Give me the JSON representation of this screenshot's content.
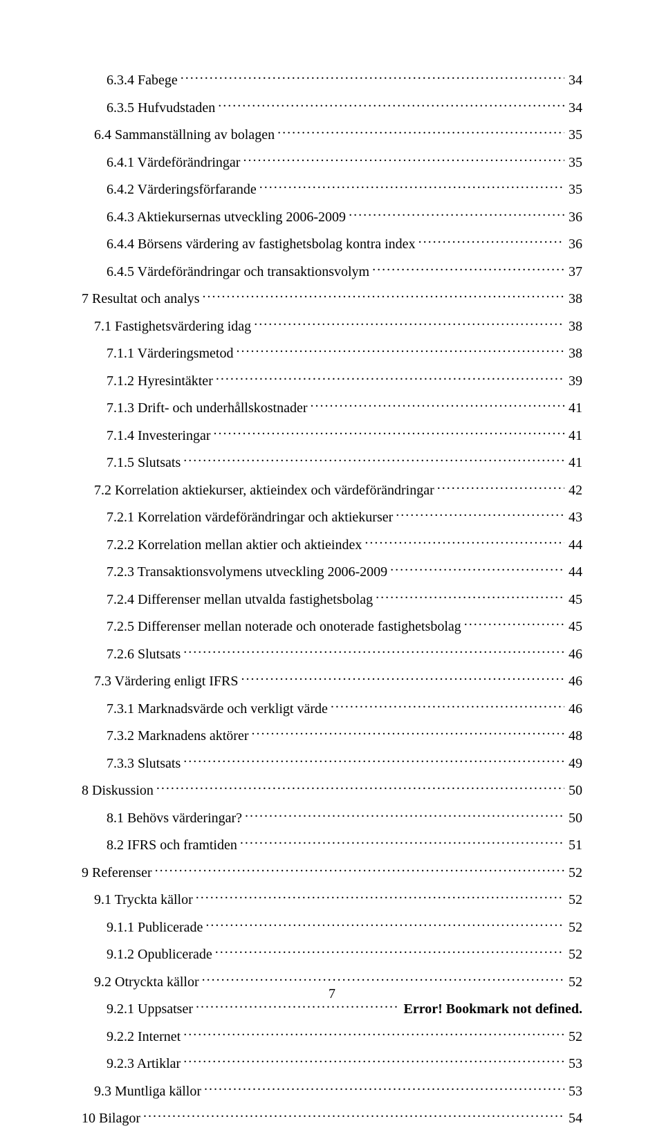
{
  "page_number": "7",
  "toc": [
    {
      "indent": 2,
      "label": "6.3.4 Fabege",
      "page": "34",
      "bold": false
    },
    {
      "indent": 2,
      "label": "6.3.5 Hufvudstaden",
      "page": "34",
      "bold": false
    },
    {
      "indent": 1,
      "label": "6.4 Sammanställning av bolagen",
      "page": "35",
      "bold": false
    },
    {
      "indent": 2,
      "label": "6.4.1 Värdeförändringar",
      "page": "35",
      "bold": false
    },
    {
      "indent": 2,
      "label": "6.4.2 Värderingsförfarande",
      "page": "35",
      "bold": false
    },
    {
      "indent": 2,
      "label": "6.4.3 Aktiekursernas utveckling 2006-2009",
      "page": "36",
      "bold": false
    },
    {
      "indent": 2,
      "label": "6.4.4 Börsens värdering av fastighetsbolag kontra index",
      "page": "36",
      "bold": false
    },
    {
      "indent": 2,
      "label": "6.4.5 Värdeförändringar och transaktionsvolym",
      "page": "37",
      "bold": false
    },
    {
      "indent": 0,
      "label": "7 Resultat och analys",
      "page": "38",
      "bold": false
    },
    {
      "indent": 1,
      "label": "7.1 Fastighetsvärdering idag",
      "page": "38",
      "bold": false
    },
    {
      "indent": 2,
      "label": "7.1.1 Värderingsmetod",
      "page": "38",
      "bold": false
    },
    {
      "indent": 2,
      "label": "7.1.2 Hyresintäkter",
      "page": "39",
      "bold": false
    },
    {
      "indent": 2,
      "label": "7.1.3 Drift- och underhållskostnader",
      "page": "41",
      "bold": false
    },
    {
      "indent": 2,
      "label": "7.1.4 Investeringar",
      "page": "41",
      "bold": false
    },
    {
      "indent": 2,
      "label": "7.1.5 Slutsats",
      "page": "41",
      "bold": false
    },
    {
      "indent": 1,
      "label": "7.2 Korrelation aktiekurser, aktieindex och värdeförändringar",
      "page": "42",
      "bold": false
    },
    {
      "indent": 2,
      "label": "7.2.1 Korrelation värdeförändringar och aktiekurser",
      "page": "43",
      "bold": false
    },
    {
      "indent": 2,
      "label": "7.2.2 Korrelation mellan aktier och aktieindex",
      "page": "44",
      "bold": false
    },
    {
      "indent": 2,
      "label": "7.2.3 Transaktionsvolymens utveckling 2006-2009",
      "page": "44",
      "bold": false
    },
    {
      "indent": 2,
      "label": "7.2.4 Differenser mellan utvalda fastighetsbolag",
      "page": "45",
      "bold": false
    },
    {
      "indent": 2,
      "label": "7.2.5 Differenser mellan noterade och onoterade fastighetsbolag",
      "page": "45",
      "bold": false
    },
    {
      "indent": 2,
      "label": "7.2.6 Slutsats",
      "page": "46",
      "bold": false
    },
    {
      "indent": 1,
      "label": "7.3 Värdering enligt IFRS",
      "page": "46",
      "bold": false
    },
    {
      "indent": 2,
      "label": "7.3.1 Marknadsvärde och verkligt värde",
      "page": "46",
      "bold": false
    },
    {
      "indent": 2,
      "label": "7.3.2 Marknadens aktörer",
      "page": "48",
      "bold": false
    },
    {
      "indent": 2,
      "label": "7.3.3 Slutsats",
      "page": "49",
      "bold": false
    },
    {
      "indent": 0,
      "label": "8 Diskussion",
      "page": "50",
      "bold": false
    },
    {
      "indent": 2,
      "label": "8.1 Behövs värderingar?",
      "page": "50",
      "bold": false
    },
    {
      "indent": 2,
      "label": "8.2 IFRS och framtiden",
      "page": "51",
      "bold": false
    },
    {
      "indent": 0,
      "label": "9 Referenser",
      "page": "52",
      "bold": false
    },
    {
      "indent": 1,
      "label": "9.1 Tryckta källor",
      "page": "52",
      "bold": false
    },
    {
      "indent": 2,
      "label": "9.1.1 Publicerade",
      "page": "52",
      "bold": false
    },
    {
      "indent": 2,
      "label": "9.1.2 Opublicerade",
      "page": "52",
      "bold": false
    },
    {
      "indent": 1,
      "label": "9.2 Otryckta källor",
      "page": "52",
      "bold": false
    },
    {
      "indent": 2,
      "label": "9.2.1 Uppsatser",
      "page": "Error! Bookmark not defined.",
      "bold": true
    },
    {
      "indent": 2,
      "label": "9.2.2 Internet",
      "page": "52",
      "bold": false
    },
    {
      "indent": 2,
      "label": "9.2.3 Artiklar",
      "page": "53",
      "bold": false
    },
    {
      "indent": 1,
      "label": "9.3 Muntliga källor",
      "page": "53",
      "bold": false
    },
    {
      "indent": 0,
      "label": "10 Bilagor",
      "page": "54",
      "bold": false
    }
  ]
}
